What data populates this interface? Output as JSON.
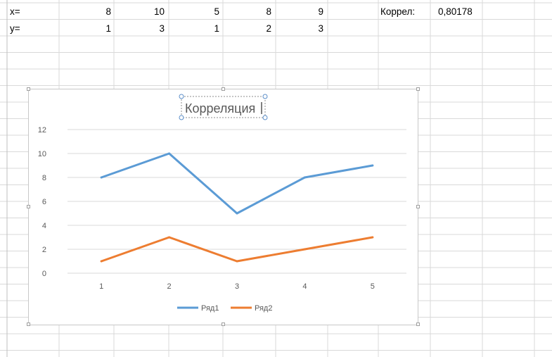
{
  "sheet": {
    "row_x_label": "x=",
    "row_y_label": "y=",
    "x_values": [
      "8",
      "10",
      "5",
      "8",
      "9"
    ],
    "y_values": [
      "1",
      "3",
      "1",
      "2",
      "3"
    ],
    "correl_label": "Коррел:",
    "correl_value": "0,80178"
  },
  "chart_data": {
    "type": "line",
    "title": "Корреляция",
    "categories": [
      "1",
      "2",
      "3",
      "4",
      "5"
    ],
    "ylim": [
      0,
      12
    ],
    "yticks": [
      0,
      2,
      4,
      6,
      8,
      10,
      12
    ],
    "grid": true,
    "legend_position": "bottom",
    "series": [
      {
        "name": "Ряд1",
        "values": [
          8,
          10,
          5,
          8,
          9
        ],
        "color": "#5b9bd5"
      },
      {
        "name": "Ряд2",
        "values": [
          1,
          3,
          1,
          2,
          3
        ],
        "color": "#ed7d31"
      }
    ]
  }
}
